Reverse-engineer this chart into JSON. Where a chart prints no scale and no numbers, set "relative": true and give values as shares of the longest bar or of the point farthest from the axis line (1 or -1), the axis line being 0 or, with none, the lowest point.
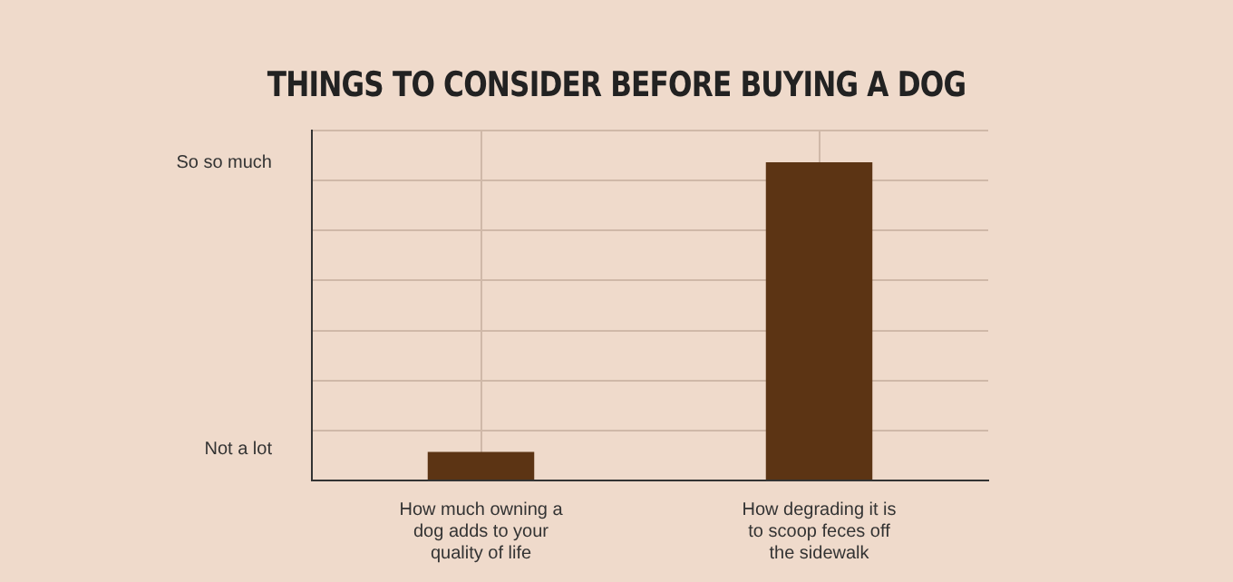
{
  "chart_data": {
    "type": "bar",
    "title": "THINGS TO CONSIDER BEFORE BUYING A DOG",
    "categories": [
      "How much owning a dog adds to your quality of life",
      "How degrading it is to scoop feces off the sidewalk"
    ],
    "values": [
      0.09,
      1
    ],
    "color": "#5c3414",
    "relative": true,
    "grid": true,
    "annotations": [
      "So so much",
      "Not a lot"
    ]
  }
}
